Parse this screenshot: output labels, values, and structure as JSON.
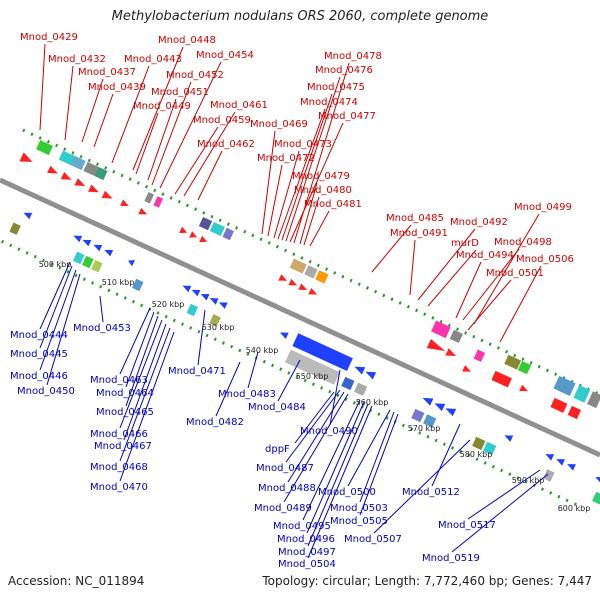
{
  "title": "Methylobacterium nodulans ORS 2060, complete genome",
  "accession": "Accession: NC_011894",
  "summary": "Topology: circular; Length: 7,772,460 bp; Genes: 7,447",
  "colors": {
    "forward_label": "#d00000",
    "reverse_label": "#0000c8",
    "backbone": "#909090",
    "dotted_ring": "#2a9a2a"
  },
  "ticks": [
    "500 kbp",
    "510 kbp",
    "520 kbp",
    "530 kbp",
    "540 kbp",
    "550 kbp",
    "560 kbp",
    "570 kbp",
    "580 kbp",
    "590 kbp",
    "600 kbp"
  ],
  "forward_genes": [
    "Mnod_0429",
    "Mnod_0432",
    "Mnod_0437",
    "Mnod_0439",
    "Mnod_0443",
    "Mnod_0448",
    "Mnod_0449",
    "Mnod_0451",
    "Mnod_0452",
    "Mnod_0454",
    "Mnod_0459",
    "Mnod_0461",
    "Mnod_0462",
    "Mnod_0469",
    "Mnod_0472",
    "Mnod_0473",
    "Mnod_0474",
    "Mnod_0475",
    "Mnod_0476",
    "Mnod_0477",
    "Mnod_0478",
    "Mnod_0479",
    "Mnod_0480",
    "Mnod_0481",
    "Mnod_0485",
    "Mnod_0491",
    "Mnod_0492",
    "murD",
    "Mnod_0494",
    "Mnod_0498",
    "Mnod_0499",
    "Mnod_0501",
    "Mnod_0506"
  ],
  "reverse_genes": [
    "Mnod_0444",
    "Mnod_0445",
    "Mnod_0446",
    "Mnod_0450",
    "Mnod_0453",
    "Mnod_0463",
    "Mnod_0464",
    "Mnod_0465",
    "Mnod_0466",
    "Mnod_0467",
    "Mnod_0468",
    "Mnod_0470",
    "Mnod_0471",
    "Mnod_0482",
    "Mnod_0483",
    "Mnod_0484",
    "Mnod_0490",
    "dppF",
    "Mnod_0487",
    "Mnod_0488",
    "Mnod_0489",
    "Mnod_0495",
    "Mnod_0496",
    "Mnod_0497",
    "Mnod_0504",
    "Mnod_0500",
    "Mnod_0503",
    "Mnod_0505",
    "Mnod_0507",
    "Mnod_0512",
    "Mnod_0517",
    "Mnod_0519"
  ]
}
